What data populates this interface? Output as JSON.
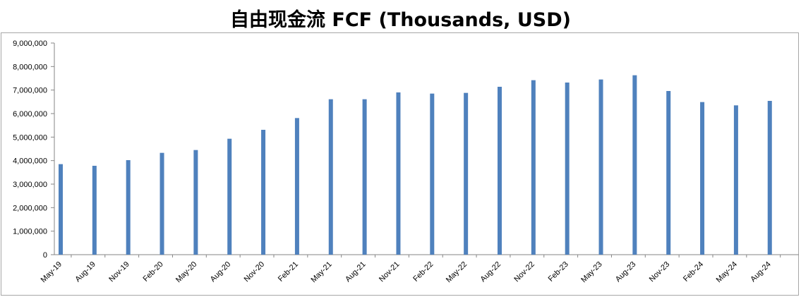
{
  "title": "自由现金流 FCF (Thousands, USD)",
  "chart_data": {
    "type": "bar",
    "title": "自由现金流 FCF (Thousands, USD)",
    "categories": [
      "May-19",
      "Aug-19",
      "Nov-19",
      "Feb-20",
      "May-20",
      "Aug-20",
      "Nov-20",
      "Feb-21",
      "May-21",
      "Aug-21",
      "Nov-21",
      "Feb-22",
      "May-22",
      "Aug-22",
      "Nov-22",
      "Feb-23",
      "May-23",
      "Aug-23",
      "Nov-23",
      "Feb-24",
      "May-24",
      "Aug-24"
    ],
    "values": [
      3850000,
      3780000,
      4020000,
      4330000,
      4450000,
      4930000,
      5310000,
      5810000,
      6610000,
      6610000,
      6900000,
      6850000,
      6880000,
      7140000,
      7420000,
      7320000,
      7450000,
      7630000,
      6960000,
      6490000,
      6350000,
      6540000
    ],
    "y_ticks": [
      "0",
      "1,000,000",
      "2,000,000",
      "3,000,000",
      "4,000,000",
      "5,000,000",
      "6,000,000",
      "7,000,000",
      "8,000,000",
      "9,000,000"
    ],
    "ylim": [
      0,
      9000000
    ],
    "xlabel": "",
    "ylabel": "",
    "bar_color": "#4f81bd",
    "grid": false,
    "legend": "none"
  }
}
